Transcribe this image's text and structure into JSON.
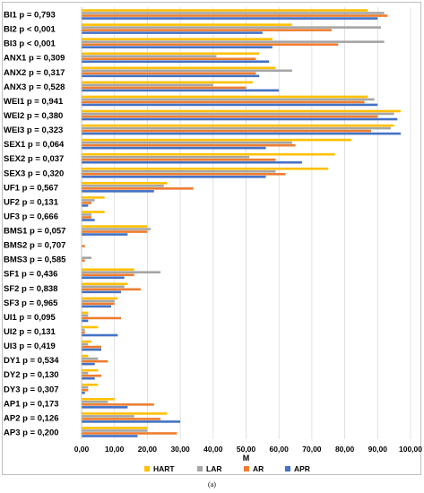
{
  "caption": "(a)",
  "chart_data": {
    "type": "bar",
    "orientation": "horizontal",
    "categories": [
      "BI1 p = 0,793",
      "BI2 p < 0,001",
      "BI3 p < 0,001",
      "ANX1 p = 0,309",
      "ANX2 p = 0,317",
      "ANX3 p = 0,528",
      "WEI1 p = 0,941",
      "WEI2 p = 0,380",
      "WEI3 p = 0,323",
      "SEX1 p = 0,064",
      "SEX2 p = 0,037",
      "SEX3 p = 0,320",
      "UF1 p = 0,567",
      "UF2 p = 0,131",
      "UF3 p = 0,666",
      "BMS1 p = 0,057",
      "BMS2 p = 0,707",
      "BMS3 p = 0,585",
      "SF1 p = 0,436",
      "SF2 p = 0,838",
      "SF3 p = 0,965",
      "UI1 p = 0,095",
      "UI2 p = 0,131",
      "UI3 p = 0,419",
      "DY1 p = 0,534",
      "DY2 p = 0,130",
      "DY3 p = 0,307",
      "AP1 p = 0,173",
      "AP2 p = 0,126",
      "AP3 p = 0,200"
    ],
    "series": [
      {
        "name": "HART",
        "color": "#ffc000",
        "values": [
          87,
          64,
          58,
          54,
          59,
          52,
          87,
          97,
          95,
          82,
          77,
          75,
          26,
          7,
          7,
          20,
          0,
          0,
          16,
          14,
          11,
          2,
          5,
          3,
          2,
          5,
          5,
          10,
          26,
          20
        ]
      },
      {
        "name": "LAR",
        "color": "#a5a5a5",
        "values": [
          92,
          91,
          92,
          41,
          64,
          40,
          89,
          95,
          94,
          64,
          51,
          59,
          25,
          4,
          3,
          21,
          0,
          3,
          24,
          13,
          10,
          2,
          1,
          2,
          5,
          2,
          2,
          8,
          16,
          20
        ]
      },
      {
        "name": "AR",
        "color": "#ed7d31",
        "values": [
          93,
          76,
          78,
          53,
          53,
          50,
          86,
          90,
          88,
          65,
          59,
          62,
          34,
          3,
          3,
          20,
          1,
          1,
          16,
          18,
          10,
          12,
          1,
          6,
          8,
          6,
          2,
          22,
          24,
          29
        ]
      },
      {
        "name": "APR",
        "color": "#4472c4",
        "values": [
          90,
          55,
          58,
          57,
          54,
          60,
          90,
          96,
          97,
          56,
          67,
          56,
          22,
          2,
          4,
          14,
          0,
          0,
          13,
          12,
          9,
          2,
          11,
          6,
          4,
          4,
          1,
          14,
          30,
          17
        ]
      }
    ],
    "xlabel": "M",
    "xlim": [
      0,
      100
    ],
    "xticks": [
      "0,00",
      "10,00",
      "20,00",
      "30,00",
      "40,00",
      "50,00",
      "60,00",
      "70,00",
      "80,00",
      "90,00",
      "100,00"
    ],
    "grid": true,
    "legend_position": "bottom"
  }
}
